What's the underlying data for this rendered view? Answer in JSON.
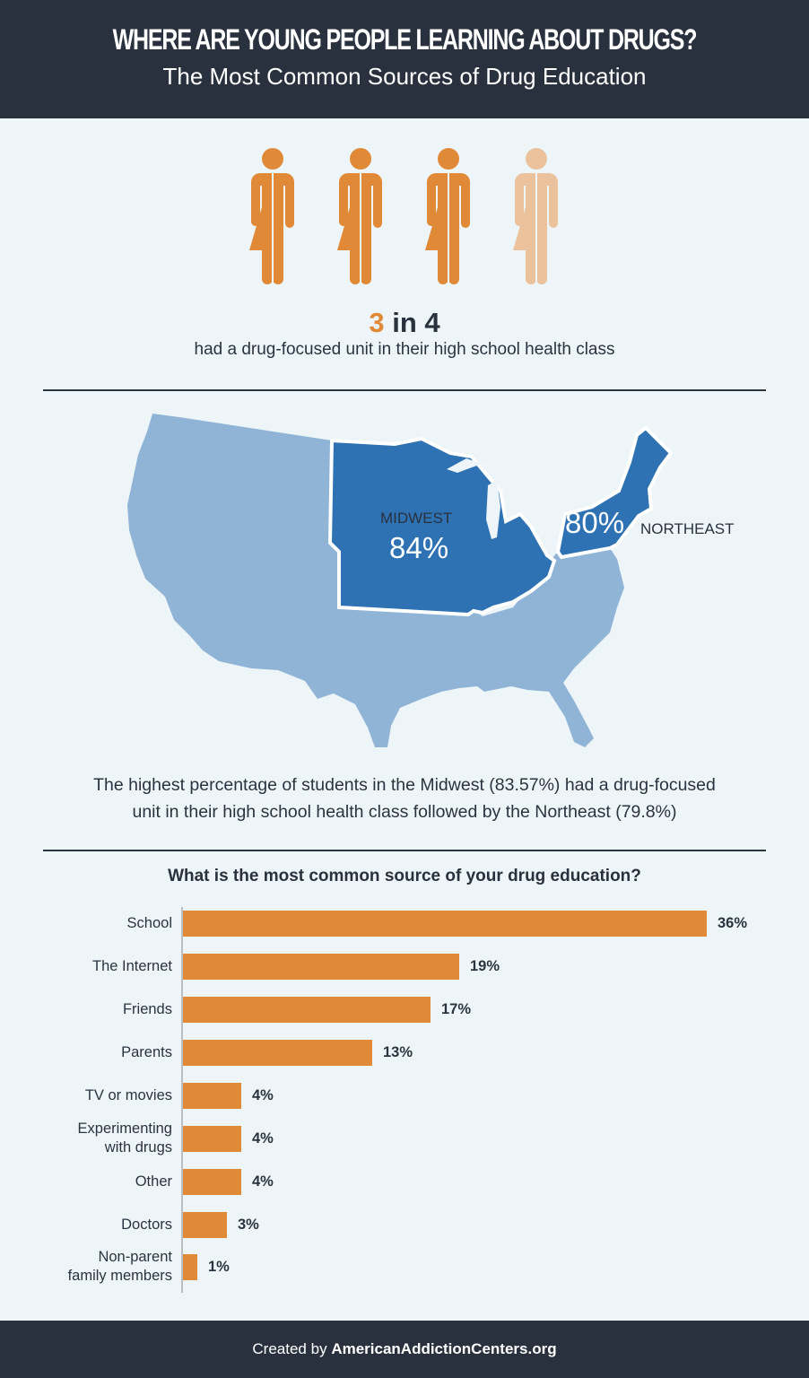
{
  "header": {
    "title": "WHERE ARE YOUNG PEOPLE LEARNING ABOUT DRUGS?",
    "subtitle": "The Most Common Sources of Drug Education"
  },
  "people_stat": {
    "icon": "person-icon",
    "filled": 3,
    "total": 4,
    "colors": {
      "filled": "#e08a38",
      "empty": "#ebc29c"
    },
    "numerator": "3",
    "connector": "in",
    "denominator": "4",
    "caption": "had a drug-focused unit in their high school health class"
  },
  "map": {
    "colors": {
      "base": "#8fb4d6",
      "highlight": "#2e72b3"
    },
    "regions": [
      {
        "name": "MIDWEST",
        "value": "84%"
      },
      {
        "name": "NORTHEAST",
        "value": "80%"
      }
    ],
    "caption_line1": "The highest percentage of students in the Midwest (83.57%) had a drug-focused",
    "caption_line2": "unit in their high school health class followed by the Northeast (79.8%)"
  },
  "chart_data": {
    "type": "bar",
    "orientation": "horizontal",
    "title": "What is the most common source of your drug education?",
    "categories": [
      "School",
      "The Internet",
      "Friends",
      "Parents",
      "TV or movies",
      "Experimenting with drugs",
      "Other",
      "Doctors",
      "Non-parent family members"
    ],
    "values": [
      36,
      19,
      17,
      13,
      4,
      4,
      4,
      3,
      1
    ],
    "value_labels": [
      "36%",
      "19%",
      "17%",
      "13%",
      "4%",
      "4%",
      "4%",
      "3%",
      "1%"
    ],
    "label_lines": [
      [
        "School"
      ],
      [
        "The Internet"
      ],
      [
        "Friends"
      ],
      [
        "Parents"
      ],
      [
        "TV or movies"
      ],
      [
        "Experimenting",
        "with drugs"
      ],
      [
        "Other"
      ],
      [
        "Doctors"
      ],
      [
        "Non-parent",
        "family members"
      ]
    ],
    "xlabel": "",
    "ylabel": "",
    "unit": "%",
    "grid": false,
    "legend": null,
    "bar_color": "#e08a38"
  },
  "footer": {
    "prefix": "Created by",
    "brand": "AmericanAddictionCenters.org"
  }
}
